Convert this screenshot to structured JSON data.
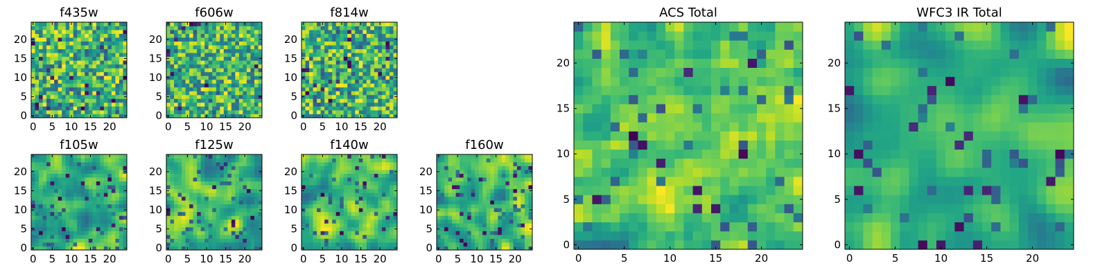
{
  "chart_data": [
    {
      "type": "heatmap",
      "title": "f435w",
      "xticks": [
        "0",
        "5",
        "10",
        "15",
        "20"
      ],
      "yticks": [
        "0",
        "5",
        "10",
        "15",
        "20"
      ],
      "grid_size": [
        25,
        25
      ],
      "colormap": "viridis",
      "seed": 11,
      "smoothness": 0.0
    },
    {
      "type": "heatmap",
      "title": "f606w",
      "xticks": [
        "0",
        "5",
        "10",
        "15",
        "20"
      ],
      "yticks": [
        "0",
        "5",
        "10",
        "15",
        "20"
      ],
      "grid_size": [
        25,
        25
      ],
      "colormap": "viridis",
      "seed": 23,
      "smoothness": 0.1
    },
    {
      "type": "heatmap",
      "title": "f814w",
      "xticks": [
        "0",
        "5",
        "10",
        "15",
        "20"
      ],
      "yticks": [
        "0",
        "5",
        "10",
        "15",
        "20"
      ],
      "grid_size": [
        25,
        25
      ],
      "colormap": "viridis",
      "seed": 37,
      "smoothness": 0.1
    },
    {
      "type": "heatmap",
      "title": "f105w",
      "xticks": [
        "0",
        "5",
        "10",
        "15",
        "20"
      ],
      "yticks": [
        "0",
        "5",
        "10",
        "15",
        "20"
      ],
      "grid_size": [
        25,
        25
      ],
      "colormap": "viridis",
      "seed": 41,
      "smoothness": 0.6
    },
    {
      "type": "heatmap",
      "title": "f125w",
      "xticks": [
        "0",
        "5",
        "10",
        "15",
        "20"
      ],
      "yticks": [
        "0",
        "5",
        "10",
        "15",
        "20"
      ],
      "grid_size": [
        25,
        25
      ],
      "colormap": "viridis",
      "seed": 53,
      "smoothness": 0.5
    },
    {
      "type": "heatmap",
      "title": "f140w",
      "xticks": [
        "0",
        "5",
        "10",
        "15",
        "20"
      ],
      "yticks": [
        "0",
        "5",
        "10",
        "15",
        "20"
      ],
      "grid_size": [
        25,
        25
      ],
      "colormap": "viridis",
      "seed": 67,
      "smoothness": 0.5
    },
    {
      "type": "heatmap",
      "title": "f160w",
      "xticks": [
        "0",
        "5",
        "10",
        "15",
        "20"
      ],
      "yticks": [
        "0",
        "5",
        "10",
        "15",
        "20"
      ],
      "grid_size": [
        25,
        25
      ],
      "colormap": "viridis",
      "seed": 79,
      "smoothness": 0.5
    },
    {
      "type": "heatmap",
      "title": "ACS Total",
      "xticks": [
        "0",
        "5",
        "10",
        "15",
        "20"
      ],
      "yticks": [
        "0",
        "5",
        "10",
        "15",
        "20"
      ],
      "grid_size": [
        25,
        25
      ],
      "colormap": "viridis",
      "seed": 97,
      "smoothness": 0.2
    },
    {
      "type": "heatmap",
      "title": "WFC3 IR Total",
      "xticks": [
        "0",
        "5",
        "10",
        "15",
        "20"
      ],
      "yticks": [
        "0",
        "5",
        "10",
        "15",
        "20"
      ],
      "grid_size": [
        25,
        25
      ],
      "colormap": "viridis",
      "seed": 113,
      "smoothness": 0.8
    }
  ]
}
